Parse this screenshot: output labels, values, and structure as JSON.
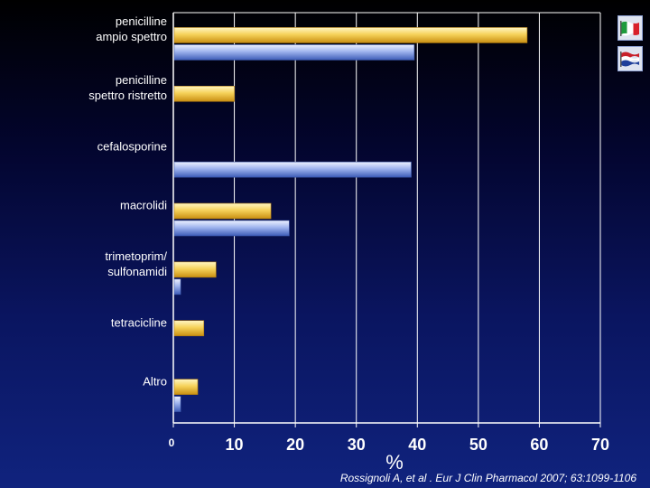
{
  "chart_data": {
    "type": "bar",
    "orientation": "horizontal",
    "categories": [
      "penicilline\nampio spettro",
      "penicilline\nspettro ristretto",
      "cefalosporine",
      "macrolidi",
      "trimetoprim/\nsulfonamidi",
      "tetracicline",
      "Altro"
    ],
    "series": [
      {
        "values": [
          58,
          10,
          0,
          16,
          7,
          5,
          4
        ],
        "color": "#f4c94a",
        "legend_icon": "italy-flag-icon"
      },
      {
        "values": [
          39.5,
          0,
          39,
          19,
          1.2,
          0,
          1.2
        ],
        "color": "#8ea6e8",
        "legend_icon": "netherlands-flag-icon"
      }
    ],
    "x_ticks": [
      "0",
      "10",
      "20",
      "30",
      "40",
      "50",
      "60",
      "70"
    ],
    "xlim": [
      0,
      70
    ],
    "xlabel": "%",
    "grid": true,
    "legend_position": "top-right"
  },
  "citation": "Rossignoli A,  et al . Eur J Clin Pharmacol  2007; 63:1099-1106"
}
